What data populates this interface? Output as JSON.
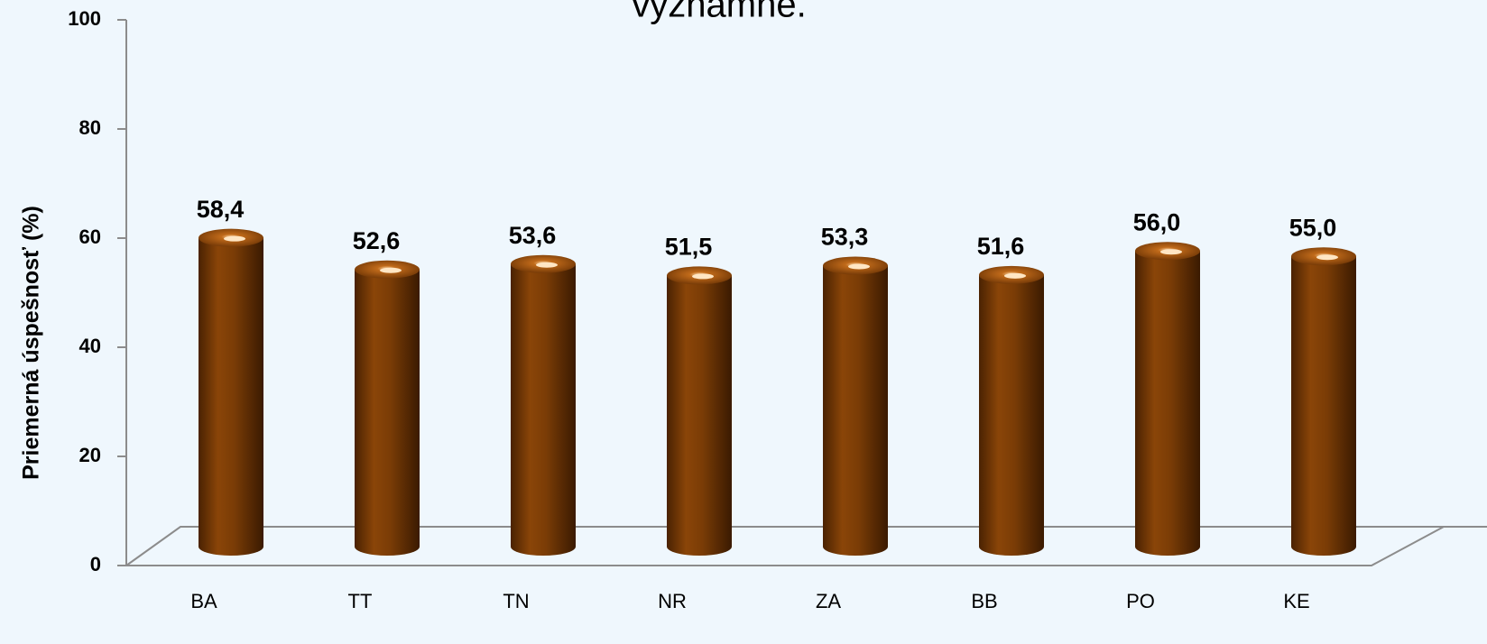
{
  "chart_data": {
    "type": "bar",
    "title": "významné.",
    "y_label": "Priemerná úspešnosť (%)",
    "categories": [
      "BA",
      "TT",
      "TN",
      "NR",
      "ZA",
      "BB",
      "PO",
      "KE"
    ],
    "values": [
      58.4,
      52.6,
      53.6,
      51.5,
      53.3,
      51.6,
      56.0,
      55.0
    ],
    "value_labels": [
      "58,4",
      "52,6",
      "53,6",
      "51,5",
      "53,3",
      "51,6",
      "56,0",
      "55,0"
    ],
    "color": "#7a3c06",
    "ylim": [
      0,
      100
    ],
    "yticks": [
      0,
      20,
      40,
      60,
      80,
      100
    ]
  }
}
